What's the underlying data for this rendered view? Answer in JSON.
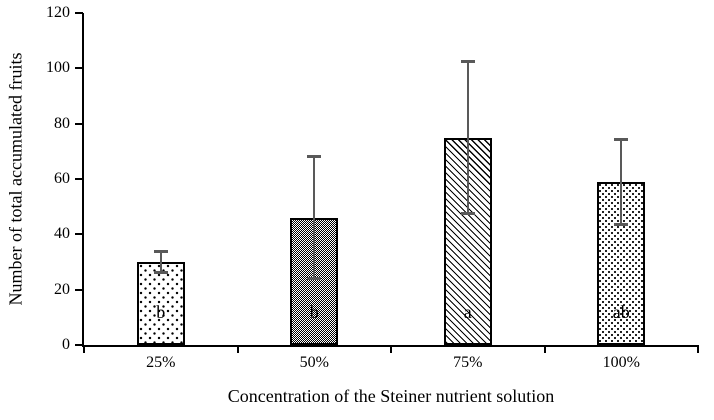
{
  "chart_data": {
    "type": "bar",
    "title": "",
    "categories": [
      "25%",
      "50%",
      "75%",
      "100%"
    ],
    "values": [
      30,
      46,
      75,
      59
    ],
    "error_bars_plus_minus": [
      4.5,
      22.5,
      28,
      16
    ],
    "bar_significance_letters": [
      "b",
      "b",
      "a",
      "ab"
    ],
    "bar_patterns": [
      "dots",
      "checker",
      "diagonal-hatch",
      "dense-dots"
    ],
    "xlabel": "Concentration of the Steiner nutrient solution",
    "ylabel": "Number of total accumulated fruits",
    "ylim": [
      0,
      120
    ],
    "yticks": [
      0,
      20,
      40,
      60,
      80,
      100,
      120
    ],
    "grid": false,
    "legend": false,
    "colors": {
      "axis": "#000000",
      "bar_outline": "#000000",
      "bar_fill_foreground": "#000000",
      "bar_fill_background": "#ffffff",
      "error_bar": "#595959",
      "text": "#000000",
      "background": "#ffffff"
    }
  }
}
